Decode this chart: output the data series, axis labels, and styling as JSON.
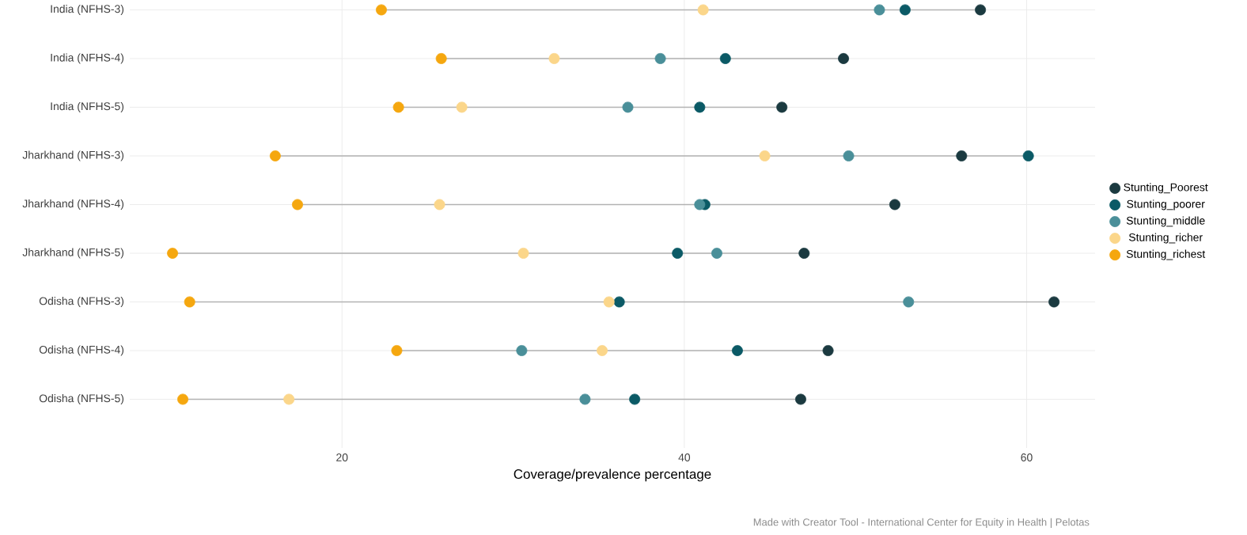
{
  "chart_data": {
    "type": "scatter",
    "xlabel": "Coverage/prevalence percentage",
    "categories": [
      "India (NFHS-3)",
      "India (NFHS-4)",
      "India (NFHS-5)",
      "Jharkhand (NFHS-3)",
      "Jharkhand (NFHS-4)",
      "Jharkhand (NFHS-5)",
      "Odisha (NFHS-3)",
      "Odisha (NFHS-4)",
      "Odisha (NFHS-5)"
    ],
    "orientation": "horizontal",
    "series": [
      {
        "name": "Stunting_Poorest",
        "color": "#1b3a40",
        "values": [
          57.3,
          49.3,
          45.7,
          56.2,
          52.3,
          47.0,
          61.6,
          48.4,
          46.8
        ]
      },
      {
        "name": "Stunting_poorer",
        "color": "#0b5a66",
        "values": [
          52.9,
          42.4,
          40.9,
          60.1,
          41.2,
          39.6,
          36.2,
          43.1,
          37.1
        ]
      },
      {
        "name": "Stunting_middle",
        "color": "#4a8f99",
        "values": [
          51.4,
          38.6,
          36.7,
          49.6,
          40.9,
          41.9,
          53.1,
          30.5,
          34.2
        ]
      },
      {
        "name": "Stunting_richer",
        "color": "#fbd68a",
        "values": [
          41.1,
          32.4,
          27.0,
          44.7,
          25.7,
          30.6,
          35.6,
          35.2,
          16.9
        ]
      },
      {
        "name": "Stunting_richest",
        "color": "#f5a70f",
        "values": [
          22.3,
          25.8,
          23.3,
          16.1,
          17.4,
          10.1,
          11.1,
          23.2,
          10.7
        ]
      }
    ],
    "xlim": [
      7.6,
      64
    ],
    "xticks": [
      20,
      40,
      60
    ],
    "grid": true,
    "legend": "right",
    "marker": "circle",
    "annotations": [
      "Made with Creator Tool - International Center for Equity in Health | Pelotas"
    ]
  }
}
